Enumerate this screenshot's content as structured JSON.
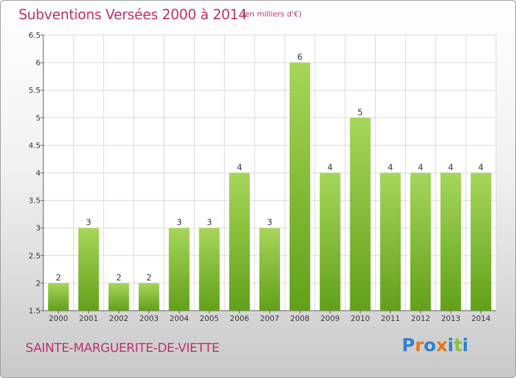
{
  "title": "Subventions Versées 2000 à 2014",
  "unit_note": "(en milliers d'€)",
  "commune": "SAINTE-MARGUERITE-DE-VIETTE",
  "logo": {
    "text": "Proxiti",
    "letter_colors": [
      "#2f7fd0",
      "#e0781f",
      "#2f7fd0",
      "#e0781f",
      "#2f7fd0",
      "#8cbf3a",
      "#2f7fd0"
    ]
  },
  "colors": {
    "title": "#c0306a",
    "bar_light": "#a6d65a",
    "bar_dark": "#62a01a",
    "grid": "#d8d8d8"
  },
  "chart_data": {
    "type": "bar",
    "categories": [
      "2000",
      "2001",
      "2002",
      "2003",
      "2004",
      "2005",
      "2006",
      "2007",
      "2008",
      "2009",
      "2010",
      "2011",
      "2012",
      "2013",
      "2014"
    ],
    "values": [
      2,
      3,
      2,
      2,
      3,
      3,
      4,
      3,
      6,
      4,
      5,
      4,
      4,
      4,
      4
    ],
    "data_labels": [
      "2",
      "3",
      "2",
      "2",
      "3",
      "3",
      "4",
      "3",
      "6",
      "4",
      "5",
      "4",
      "4",
      "4",
      "4"
    ],
    "title": "Subventions Versées 2000 à 2014",
    "xlabel": "",
    "ylabel": "",
    "ylim": [
      1.5,
      6.5
    ],
    "yticks": [
      "1.5",
      "2",
      "2.5",
      "3",
      "3.5",
      "4",
      "4.5",
      "5",
      "5.5",
      "6",
      "6.5"
    ],
    "grid": true
  }
}
